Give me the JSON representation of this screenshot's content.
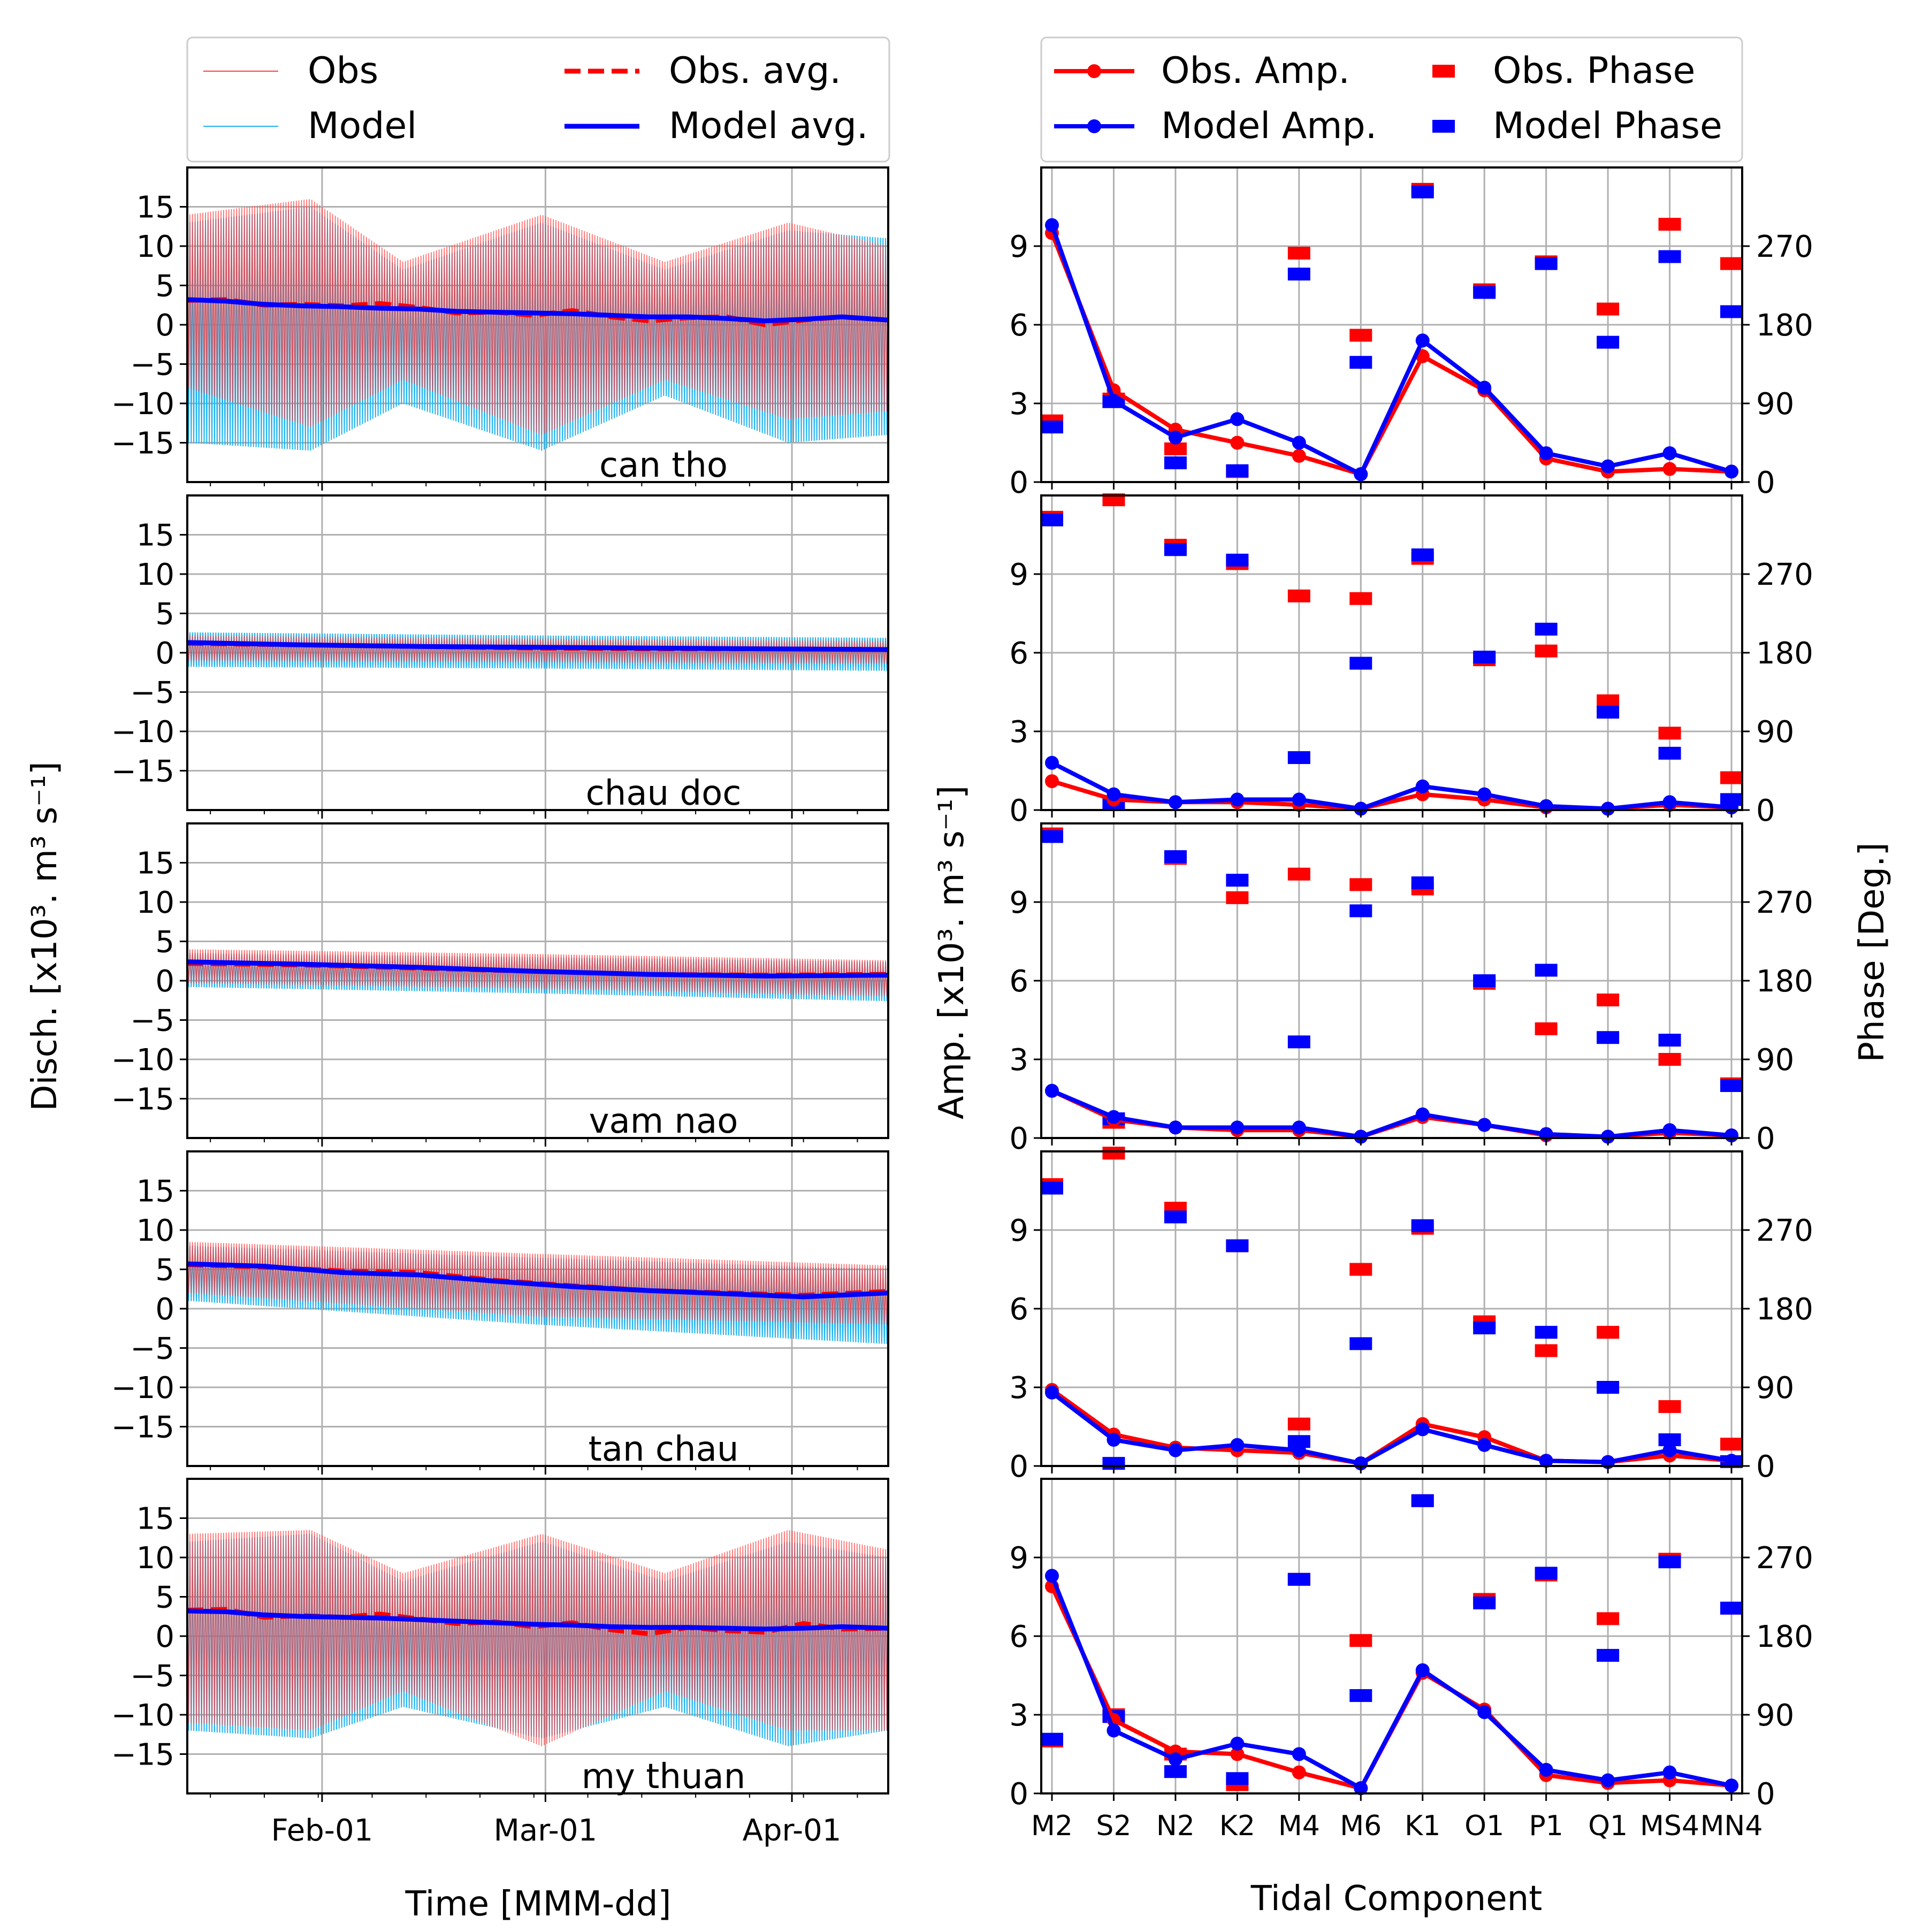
{
  "colors": {
    "obs": "#ff0000",
    "obs_thin": "#ff4040",
    "model": "#0000ff",
    "model_thin": "#1fb3ee",
    "grid": "#b0b0b0",
    "axis": "#000000"
  },
  "left_legend": {
    "obs": "Obs",
    "model": "Model",
    "obs_avg": "Obs. avg.",
    "model_avg": "Model avg."
  },
  "right_legend": {
    "obs_amp": "Obs. Amp.",
    "model_amp": "Model Amp.",
    "obs_phase": "Obs. Phase",
    "model_phase": "Model Phase"
  },
  "left_axis": {
    "ylabel": "Disch. [x10³. m³ s⁻¹]",
    "xlabel": "Time [MMM-dd]",
    "ylim": [
      -20,
      20
    ],
    "yticks": [
      15,
      10,
      5,
      0,
      -5,
      -10,
      -15
    ],
    "ytick_labels": [
      "15",
      "10",
      "5",
      "0",
      "−5",
      "−10",
      "−15"
    ],
    "xlim_days": [
      0,
      91
    ],
    "xticks": [
      {
        "day": 17.5,
        "label": "Feb-01"
      },
      {
        "day": 46.5,
        "label": "Mar-01"
      },
      {
        "day": 78.5,
        "label": "Apr-01"
      }
    ]
  },
  "right_axis": {
    "ylabel_left": "Amp. [x10³. m³ s⁻¹]",
    "ylabel_right": "Phase [Deg.]",
    "xlabel": "Tidal Component",
    "amp_ylim": [
      0,
      12
    ],
    "amp_ticks": [
      "0",
      "3",
      "6",
      "9"
    ],
    "phase_ylim": [
      0,
      360
    ],
    "phase_ticks": [
      "0",
      "90",
      "180",
      "270"
    ],
    "components": [
      "M2",
      "S2",
      "N2",
      "K2",
      "M4",
      "M6",
      "K1",
      "O1",
      "P1",
      "Q1",
      "MS4",
      "MN4"
    ]
  },
  "chart_data": [
    {
      "type": "line",
      "title": "can tho",
      "x_units": "days since mid-January",
      "series": [
        {
          "name": "Obs avg.",
          "x": [
            0,
            5,
            10,
            15,
            20,
            25,
            30,
            35,
            40,
            45,
            50,
            55,
            60,
            65,
            70,
            75,
            80,
            85,
            91
          ],
          "y": [
            3.1,
            3.2,
            2.5,
            2.6,
            2.4,
            2.7,
            2.2,
            1.5,
            1.6,
            1.2,
            1.8,
            1.0,
            0.5,
            0.9,
            1.0,
            0.0,
            0.6,
            1.0,
            0.6
          ]
        },
        {
          "name": "Model avg.",
          "x": [
            0,
            5,
            10,
            15,
            20,
            25,
            30,
            35,
            40,
            45,
            50,
            55,
            60,
            65,
            70,
            75,
            80,
            85,
            91
          ],
          "y": [
            3.2,
            3.0,
            2.6,
            2.4,
            2.3,
            2.1,
            2.0,
            1.7,
            1.6,
            1.5,
            1.4,
            1.2,
            1.0,
            1.0,
            0.8,
            0.5,
            0.7,
            1.0,
            0.6
          ]
        },
        {
          "name": "Obs",
          "envelope": {
            "x": [
              0,
              16,
              28,
              46,
              62,
              78,
              91
            ],
            "max": [
              14,
              16,
              8,
              14,
              8,
              13,
              10
            ],
            "min": [
              -8,
              -13,
              -7,
              -14,
              -7,
              -12,
              -11
            ]
          }
        },
        {
          "name": "Model",
          "envelope": {
            "x": [
              0,
              16,
              28,
              46,
              62,
              78,
              91
            ],
            "max": [
              13,
              15,
              7,
              13,
              7,
              12,
              11
            ],
            "min": [
              -15,
              -16,
              -10,
              -16,
              -9,
              -15,
              -14
            ]
          }
        }
      ]
    },
    {
      "type": "line",
      "title": "chau doc",
      "x_units": "days since mid-January",
      "series": [
        {
          "name": "Obs avg.",
          "x": [
            0,
            15,
            30,
            45,
            60,
            75,
            91
          ],
          "y": [
            1.2,
            1.0,
            0.8,
            0.6,
            0.5,
            0.5,
            0.4
          ]
        },
        {
          "name": "Model avg.",
          "x": [
            0,
            15,
            30,
            45,
            60,
            75,
            91
          ],
          "y": [
            1.3,
            1.0,
            0.8,
            0.7,
            0.6,
            0.5,
            0.4
          ]
        },
        {
          "name": "Obs",
          "envelope": {
            "x": [
              0,
              45,
              91
            ],
            "max": [
              2.2,
              1.8,
              1.5
            ],
            "min": [
              -1.0,
              -1.2,
              -1.4
            ]
          }
        },
        {
          "name": "Model",
          "envelope": {
            "x": [
              0,
              45,
              91
            ],
            "max": [
              2.6,
              2.2,
              1.9
            ],
            "min": [
              -1.8,
              -2.0,
              -2.3
            ]
          }
        }
      ]
    },
    {
      "type": "line",
      "title": "vam nao",
      "x_units": "days since mid-January",
      "series": [
        {
          "name": "Obs avg.",
          "x": [
            0,
            15,
            30,
            45,
            60,
            75,
            91
          ],
          "y": [
            2.2,
            2.0,
            1.6,
            1.2,
            0.8,
            0.7,
            0.8
          ]
        },
        {
          "name": "Model avg.",
          "x": [
            0,
            15,
            30,
            45,
            60,
            75,
            91
          ],
          "y": [
            2.4,
            2.1,
            1.7,
            1.2,
            0.8,
            0.6,
            0.7
          ]
        },
        {
          "name": "Obs",
          "envelope": {
            "x": [
              0,
              45,
              91
            ],
            "max": [
              4.0,
              3.4,
              2.6
            ],
            "min": [
              -0.3,
              -1.0,
              -2.0
            ]
          }
        },
        {
          "name": "Model",
          "envelope": {
            "x": [
              0,
              45,
              91
            ],
            "max": [
              3.5,
              3.0,
              2.4
            ],
            "min": [
              -0.8,
              -1.6,
              -2.6
            ]
          }
        }
      ]
    },
    {
      "type": "line",
      "title": "tan chau",
      "x_units": "days since mid-January",
      "series": [
        {
          "name": "Obs avg.",
          "x": [
            0,
            10,
            20,
            30,
            40,
            50,
            60,
            70,
            80,
            91
          ],
          "y": [
            5.6,
            5.3,
            4.8,
            4.6,
            3.6,
            2.9,
            2.3,
            2.0,
            1.7,
            2.2
          ]
        },
        {
          "name": "Model avg.",
          "x": [
            0,
            10,
            20,
            30,
            40,
            50,
            60,
            70,
            80,
            91
          ],
          "y": [
            5.7,
            5.4,
            4.6,
            4.3,
            3.5,
            2.8,
            2.3,
            1.9,
            1.5,
            2.0
          ]
        },
        {
          "name": "Obs",
          "envelope": {
            "x": [
              0,
              45,
              91
            ],
            "max": [
              8.5,
              7.0,
              5.5
            ],
            "min": [
              2.0,
              -1.0,
              -2.0
            ]
          }
        },
        {
          "name": "Model",
          "envelope": {
            "x": [
              0,
              45,
              91
            ],
            "max": [
              8.0,
              6.5,
              5.0
            ],
            "min": [
              1.0,
              -2.0,
              -4.5
            ]
          }
        }
      ]
    },
    {
      "type": "line",
      "title": "my thuan",
      "x_units": "days since mid-January",
      "series": [
        {
          "name": "Obs avg.",
          "x": [
            0,
            5,
            10,
            15,
            20,
            25,
            30,
            35,
            40,
            45,
            50,
            55,
            60,
            65,
            70,
            75,
            80,
            85,
            91
          ],
          "y": [
            3.3,
            3.4,
            2.4,
            2.6,
            2.4,
            2.8,
            2.2,
            1.6,
            1.8,
            1.2,
            1.7,
            0.8,
            0.3,
            1.1,
            0.7,
            0.5,
            1.6,
            0.9,
            1.0
          ]
        },
        {
          "name": "Model avg.",
          "x": [
            0,
            5,
            10,
            15,
            20,
            25,
            30,
            35,
            40,
            45,
            50,
            55,
            60,
            65,
            70,
            75,
            80,
            85,
            91
          ],
          "y": [
            3.2,
            3.1,
            2.7,
            2.5,
            2.4,
            2.3,
            2.1,
            1.9,
            1.7,
            1.5,
            1.4,
            1.2,
            1.1,
            1.1,
            1.0,
            0.9,
            1.0,
            1.2,
            1.0
          ]
        },
        {
          "name": "Obs",
          "envelope": {
            "x": [
              0,
              16,
              28,
              46,
              62,
              78,
              91
            ],
            "max": [
              13,
              13.5,
              8,
              13,
              8,
              13.5,
              11
            ],
            "min": [
              -11,
              -12,
              -7,
              -14,
              -7,
              -12,
              -12
            ]
          }
        },
        {
          "name": "Model",
          "envelope": {
            "x": [
              0,
              16,
              28,
              46,
              62,
              78,
              91
            ],
            "max": [
              12,
              13,
              7,
              12,
              7,
              12,
              10
            ],
            "min": [
              -12,
              -13,
              -9,
              -13,
              -9,
              -14,
              -12
            ]
          }
        }
      ]
    },
    {
      "type": "line",
      "title": "can tho",
      "categories": [
        "M2",
        "S2",
        "N2",
        "K2",
        "M4",
        "M6",
        "K1",
        "O1",
        "P1",
        "Q1",
        "MS4",
        "MN4"
      ],
      "series": [
        {
          "name": "Obs. Amp.",
          "values": [
            9.5,
            3.5,
            2.0,
            1.5,
            1.0,
            0.3,
            4.8,
            3.5,
            0.9,
            0.4,
            0.5,
            0.4
          ]
        },
        {
          "name": "Model Amp.",
          "values": [
            9.8,
            3.1,
            1.7,
            2.4,
            1.5,
            0.3,
            5.4,
            3.6,
            1.1,
            0.6,
            1.1,
            0.4
          ]
        },
        {
          "name": "Obs. Phase",
          "values": [
            70,
            95,
            38,
            12,
            262,
            168,
            335,
            220,
            252,
            198,
            295,
            250
          ]
        },
        {
          "name": "Model Phase",
          "values": [
            63,
            92,
            22,
            13,
            238,
            137,
            332,
            217,
            250,
            160,
            258,
            195
          ]
        }
      ]
    },
    {
      "type": "line",
      "title": "chau doc",
      "categories": [
        "M2",
        "S2",
        "N2",
        "K2",
        "M4",
        "M6",
        "K1",
        "O1",
        "P1",
        "Q1",
        "MS4",
        "MN4"
      ],
      "series": [
        {
          "name": "Obs. Amp.",
          "values": [
            1.1,
            0.4,
            0.3,
            0.3,
            0.2,
            0.05,
            0.6,
            0.4,
            0.1,
            0.05,
            0.2,
            0.1
          ]
        },
        {
          "name": "Model Amp.",
          "values": [
            1.8,
            0.6,
            0.3,
            0.4,
            0.4,
            0.05,
            0.9,
            0.6,
            0.15,
            0.05,
            0.3,
            0.1
          ]
        },
        {
          "name": "Obs. Phase",
          "values": [
            335,
            355,
            303,
            282,
            245,
            242,
            288,
            172,
            182,
            125,
            88,
            37
          ]
        },
        {
          "name": "Model Phase",
          "values": [
            332,
            8,
            298,
            286,
            60,
            168,
            292,
            175,
            207,
            112,
            65,
            12
          ]
        }
      ]
    },
    {
      "type": "line",
      "title": "vam nao",
      "categories": [
        "M2",
        "S2",
        "N2",
        "K2",
        "M4",
        "M6",
        "K1",
        "O1",
        "P1",
        "Q1",
        "MS4",
        "MN4"
      ],
      "series": [
        {
          "name": "Obs. Amp.",
          "values": [
            1.8,
            0.7,
            0.4,
            0.3,
            0.3,
            0.05,
            0.8,
            0.5,
            0.1,
            0.05,
            0.2,
            0.1
          ]
        },
        {
          "name": "Model Amp.",
          "values": [
            1.8,
            0.8,
            0.4,
            0.4,
            0.4,
            0.05,
            0.9,
            0.5,
            0.15,
            0.05,
            0.3,
            0.1
          ]
        },
        {
          "name": "Obs. Phase",
          "values": [
            348,
            18,
            320,
            275,
            302,
            290,
            285,
            177,
            125,
            158,
            90,
            62
          ]
        },
        {
          "name": "Model Phase",
          "values": [
            345,
            22,
            322,
            295,
            110,
            260,
            292,
            180,
            192,
            115,
            112,
            60
          ]
        }
      ]
    },
    {
      "type": "line",
      "title": "tan chau",
      "categories": [
        "M2",
        "S2",
        "N2",
        "K2",
        "M4",
        "M6",
        "K1",
        "O1",
        "P1",
        "Q1",
        "MS4",
        "MN4"
      ],
      "series": [
        {
          "name": "Obs. Amp.",
          "values": [
            2.9,
            1.2,
            0.7,
            0.6,
            0.5,
            0.1,
            1.6,
            1.1,
            0.2,
            0.15,
            0.4,
            0.2
          ]
        },
        {
          "name": "Model Amp.",
          "values": [
            2.8,
            1.0,
            0.6,
            0.8,
            0.6,
            0.1,
            1.4,
            0.8,
            0.2,
            0.15,
            0.6,
            0.2
          ]
        },
        {
          "name": "Obs. Phase",
          "values": [
            322,
            358,
            295,
            252,
            48,
            225,
            272,
            165,
            132,
            153,
            68,
            25
          ]
        },
        {
          "name": "Model Phase",
          "values": [
            318,
            3,
            285,
            252,
            28,
            140,
            275,
            158,
            153,
            90,
            30,
            5
          ]
        }
      ]
    },
    {
      "type": "line",
      "title": "my thuan",
      "categories": [
        "M2",
        "S2",
        "N2",
        "K2",
        "M4",
        "M6",
        "K1",
        "O1",
        "P1",
        "Q1",
        "MS4",
        "MN4"
      ],
      "series": [
        {
          "name": "Obs. Amp.",
          "values": [
            7.9,
            2.8,
            1.6,
            1.5,
            0.8,
            0.2,
            4.6,
            3.2,
            0.7,
            0.4,
            0.5,
            0.3
          ]
        },
        {
          "name": "Model Amp.",
          "values": [
            8.3,
            2.4,
            1.3,
            1.9,
            1.5,
            0.2,
            4.7,
            3.1,
            0.9,
            0.5,
            0.8,
            0.3
          ]
        },
        {
          "name": "Obs. Phase",
          "values": [
            60,
            90,
            45,
            10,
            245,
            175,
            335,
            222,
            250,
            200,
            268,
            212
          ]
        },
        {
          "name": "Model Phase",
          "values": [
            62,
            88,
            25,
            17,
            245,
            112,
            335,
            218,
            252,
            158,
            265,
            212
          ]
        }
      ]
    }
  ]
}
